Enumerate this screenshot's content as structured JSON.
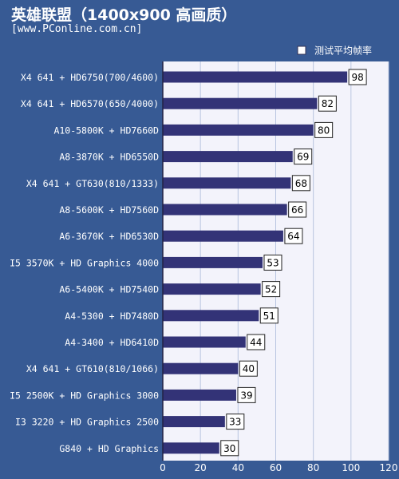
{
  "title": "英雄联盟（1400x900 高画质）",
  "subtitle": "[www.PConline.com.cn]",
  "colors": {
    "background": "#375a94",
    "plot_background": "#f3f3fb",
    "grid": "#b8c4e0",
    "bar": "#333377",
    "label_text": "#ffffff",
    "value_box": "#ffffff"
  },
  "chart_data": {
    "type": "bar",
    "orientation": "horizontal",
    "title": "英雄联盟（1400x900 高画质）",
    "subtitle": "[www.PConline.com.cn]",
    "legend": {
      "position": "top-right",
      "entries": [
        "测试平均帧率"
      ]
    },
    "xlim": [
      0,
      120
    ],
    "xticks": [
      "0",
      "20",
      "40",
      "60",
      "80",
      "100",
      "120"
    ],
    "grid": true,
    "categories": [
      "X4 641 + HD6750(700/4600)",
      "X4 641 + HD6570(650/4000)",
      "A10-5800K + HD7660D",
      "A8-3870K + HD6550D",
      "X4 641 + GT630(810/1333)",
      "A8-5600K + HD7560D",
      "A6-3670K + HD6530D",
      "I5 3570K + HD Graphics 4000",
      "A6-5400K + HD7540D",
      "A4-5300 + HD7480D",
      "A4-3400 + HD6410D",
      "X4 641 + GT610(810/1066)",
      "I5 2500K + HD Graphics 3000",
      "I3 3220 + HD Graphics 2500",
      "G840 + HD Graphics"
    ],
    "series": [
      {
        "name": "测试平均帧率",
        "values": [
          98,
          82,
          80,
          69,
          68,
          66,
          64,
          53,
          52,
          51,
          44,
          40,
          39,
          33,
          30
        ]
      }
    ]
  }
}
